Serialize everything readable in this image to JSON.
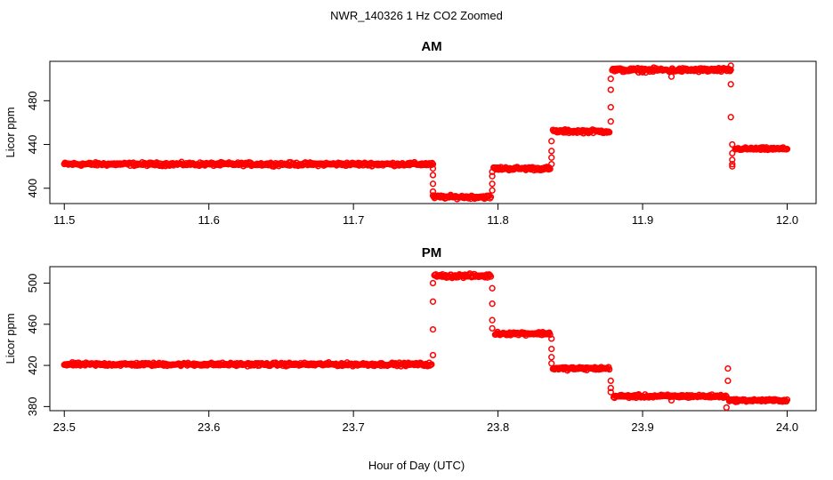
{
  "figure": {
    "title": "NWR_140326  1 Hz CO2 Zoomed",
    "xlabel": "Hour of Day (UTC)"
  },
  "colors": {
    "points": "#ff0000",
    "axes": "#000000",
    "background": "#ffffff"
  },
  "chart_data": [
    {
      "type": "scatter",
      "title": "AM",
      "xlabel": "",
      "ylabel": "Licor ppm",
      "xlim": [
        11.49,
        12.02
      ],
      "ylim": [
        386,
        516
      ],
      "xticks": [
        11.5,
        11.6,
        11.7,
        11.8,
        11.9,
        12.0
      ],
      "xtick_labels": [
        "11.5",
        "11.6",
        "11.7",
        "11.8",
        "11.9",
        "12.0"
      ],
      "yticks": [
        400,
        440,
        480
      ],
      "ytick_labels": [
        "400",
        "440",
        "480"
      ],
      "grid": false,
      "legend": "none",
      "marker": "open-circle",
      "series": [
        {
          "segments": [
            {
              "x_start": 11.5,
              "x_end": 11.755,
              "value": 422,
              "spread": 2.5
            },
            {
              "x_start": 11.755,
              "x_end": 11.795,
              "value": 392,
              "spread": 2.5
            },
            {
              "x_start": 11.797,
              "x_end": 11.836,
              "value": 418,
              "spread": 2.5
            },
            {
              "x_start": 11.838,
              "x_end": 11.877,
              "value": 452,
              "spread": 2.5
            },
            {
              "x_start": 11.879,
              "x_end": 11.961,
              "value": 508,
              "spread": 3
            },
            {
              "x_start": 11.964,
              "x_end": 12.0,
              "value": 436,
              "spread": 2
            }
          ],
          "transitions": [
            {
              "x": 11.755,
              "values": [
                418,
                412,
                404,
                397
              ]
            },
            {
              "x": 11.796,
              "values": [
                398,
                404,
                411,
                415
              ]
            },
            {
              "x": 11.837,
              "values": [
                422,
                428,
                434,
                443
              ]
            },
            {
              "x": 11.878,
              "values": [
                461,
                474,
                490,
                500
              ]
            },
            {
              "x": 11.961,
              "values": [
                512,
                495,
                465
              ]
            },
            {
              "x": 11.962,
              "values": [
                422,
                426,
                432,
                440
              ]
            }
          ],
          "outliers": [
            {
              "x": 11.92,
              "y": 502
            },
            {
              "x": 11.962,
              "y": 420
            }
          ]
        }
      ]
    },
    {
      "type": "scatter",
      "title": "PM",
      "xlabel": "Hour of Day (UTC)",
      "ylabel": "Licor ppm",
      "xlim": [
        23.49,
        24.02
      ],
      "ylim": [
        376,
        516
      ],
      "xticks": [
        23.5,
        23.6,
        23.7,
        23.8,
        23.9,
        24.0
      ],
      "xtick_labels": [
        "23.5",
        "23.6",
        "23.7",
        "23.8",
        "23.9",
        "24.0"
      ],
      "yticks": [
        380,
        420,
        460,
        500
      ],
      "ytick_labels": [
        "380",
        "420",
        "460",
        "500"
      ],
      "grid": false,
      "legend": "none",
      "marker": "open-circle",
      "series": [
        {
          "segments": [
            {
              "x_start": 23.5,
              "x_end": 23.754,
              "value": 421,
              "spread": 2.5
            },
            {
              "x_start": 23.756,
              "x_end": 23.795,
              "value": 507,
              "spread": 3
            },
            {
              "x_start": 23.798,
              "x_end": 23.836,
              "value": 451,
              "spread": 2.5
            },
            {
              "x_start": 23.838,
              "x_end": 23.877,
              "value": 417,
              "spread": 2.5
            },
            {
              "x_start": 23.88,
              "x_end": 23.958,
              "value": 390,
              "spread": 2.5
            },
            {
              "x_start": 23.96,
              "x_end": 24.0,
              "value": 386,
              "spread": 2
            }
          ],
          "transitions": [
            {
              "x": 23.755,
              "values": [
                430,
                455,
                482,
                500
              ]
            },
            {
              "x": 23.796,
              "values": [
                495,
                480,
                464,
                456
              ]
            },
            {
              "x": 23.837,
              "values": [
                446,
                436,
                428,
                422
              ]
            },
            {
              "x": 23.878,
              "values": [
                405,
                398,
                394
              ]
            },
            {
              "x": 23.959,
              "values": [
                417,
                405
              ]
            }
          ],
          "outliers": [
            {
              "x": 23.958,
              "y": 379
            },
            {
              "x": 23.92,
              "y": 386
            }
          ]
        }
      ]
    }
  ]
}
